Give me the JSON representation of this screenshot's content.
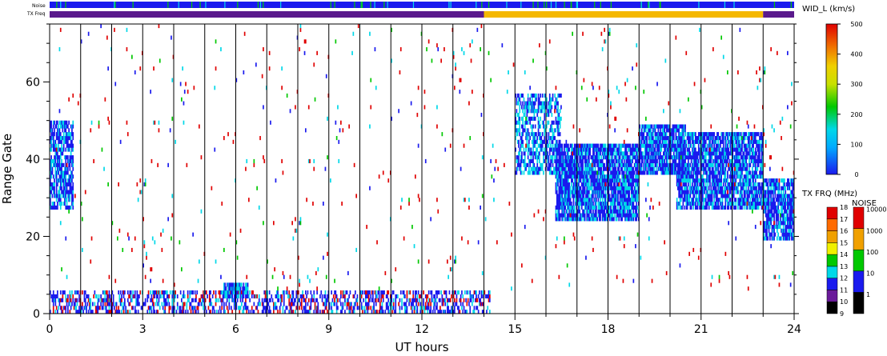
{
  "chart_data": {
    "type": "heatmap",
    "xlabel": "UT hours",
    "ylabel": "Range Gate",
    "xlim": [
      0,
      24
    ],
    "ylim": [
      0,
      75
    ],
    "x_ticks": [
      "0",
      "3",
      "6",
      "9",
      "12",
      "15",
      "18",
      "21",
      "24"
    ],
    "y_ticks": [
      "0",
      "20",
      "40",
      "60"
    ],
    "top_bars": {
      "noise_label": "Noise",
      "txfreq_label": "TX Freq",
      "txfreq_segments": [
        {
          "start": 0,
          "end": 14,
          "color": "#5a1a8c"
        },
        {
          "start": 14,
          "end": 23,
          "color": "#f5b800"
        },
        {
          "start": 23,
          "end": 24,
          "color": "#5a1a8c"
        }
      ]
    },
    "width_colorbar": {
      "title": "WID_L (km/s)",
      "min": 0,
      "max": 500,
      "ticks": [
        "0",
        "100",
        "200",
        "300",
        "400",
        "500"
      ]
    },
    "txfreq_colorbar": {
      "title": "TX FRQ (MHz)",
      "ticks": [
        "9",
        "10",
        "11",
        "12",
        "13",
        "14",
        "15",
        "16",
        "17",
        "18"
      ],
      "colors": [
        "#000000",
        "#6a1a9a",
        "#1a1aee",
        "#00d8e8",
        "#00c800",
        "#f0f000",
        "#f0a000",
        "#ff6a00",
        "#e00000"
      ]
    },
    "noise_colorbar": {
      "title": "NOISE",
      "ticks": [
        "1",
        "10",
        "100",
        "1000",
        "10000"
      ],
      "colors": [
        "#000000",
        "#1a1aee",
        "#00c800",
        "#f0a000",
        "#e00000"
      ]
    },
    "regions": [
      {
        "x0": 0.0,
        "x1": 0.75,
        "y0": 27,
        "y1": 50,
        "density": 0.7,
        "colors": [
          "#1a1aee",
          "#1a1aee",
          "#00d8e8"
        ]
      },
      {
        "x0": 0.0,
        "x1": 14.2,
        "y0": 0,
        "y1": 6,
        "density": 0.45,
        "colors": [
          "#1a1aee",
          "#1a1aee",
          "#1a1aee",
          "#00d8e8",
          "#e00000"
        ]
      },
      {
        "x0": 5.6,
        "x1": 6.4,
        "y0": 4,
        "y1": 8,
        "density": 0.9,
        "colors": [
          "#1a1aee",
          "#00d8e8"
        ]
      },
      {
        "x0": 15.0,
        "x1": 16.5,
        "y0": 36,
        "y1": 57,
        "density": 0.55,
        "colors": [
          "#1a1aee",
          "#00d8e8"
        ]
      },
      {
        "x0": 16.3,
        "x1": 19.0,
        "y0": 24,
        "y1": 44,
        "density": 0.85,
        "colors": [
          "#1a1aee",
          "#1a1aee",
          "#00d8e8"
        ]
      },
      {
        "x0": 19.0,
        "x1": 20.5,
        "y0": 36,
        "y1": 49,
        "density": 0.85,
        "colors": [
          "#1a1aee",
          "#1a1aee",
          "#00d8e8"
        ]
      },
      {
        "x0": 20.2,
        "x1": 23.0,
        "y0": 27,
        "y1": 47,
        "density": 0.8,
        "colors": [
          "#1a1aee",
          "#1a1aee",
          "#00d8e8"
        ]
      },
      {
        "x0": 23.0,
        "x1": 24.0,
        "y0": 19,
        "y1": 35,
        "density": 0.8,
        "colors": [
          "#1a1aee",
          "#1a1aee",
          "#00d8e8"
        ]
      },
      {
        "x0": 0.0,
        "x1": 24.0,
        "y0": 6,
        "y1": 75,
        "density": 0.012,
        "colors": [
          "#e00000",
          "#e00000",
          "#e00000",
          "#1a1aee",
          "#00d8e8",
          "#00c800"
        ]
      }
    ]
  }
}
